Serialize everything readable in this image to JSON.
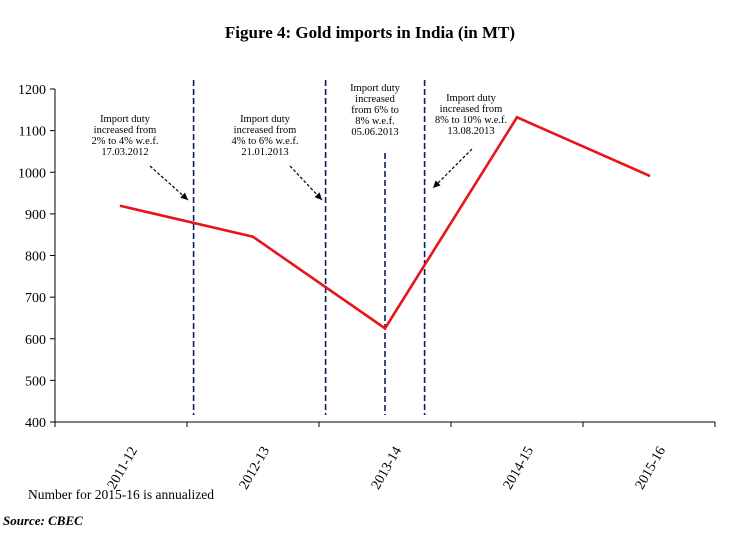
{
  "chart_data": {
    "type": "line",
    "title": "Figure 4: Gold imports in India (in MT)",
    "categories": [
      "2011-12",
      "2012-13",
      "2013-14",
      "2014-15",
      "2015-16"
    ],
    "series": [
      {
        "values": [
          919,
          845,
          625,
          1132,
          992
        ]
      }
    ],
    "ylim": [
      400,
      1200
    ],
    "y_ticks": [
      400,
      500,
      600,
      700,
      800,
      900,
      1000,
      1100,
      1200
    ],
    "grid": false,
    "series_color": "#e8141a",
    "marker_color": "#0b1f5c",
    "markers": [
      {
        "x": 0.55,
        "lines": [
          "Import duty",
          "increased from",
          "2% to 4% w.e.f.",
          "17.03.2012"
        ]
      },
      {
        "x": 1.55,
        "lines": [
          "Import duty",
          "increased from",
          "4% to 6% w.e.f.",
          "21.01.2013"
        ]
      },
      {
        "x": 2.0,
        "lines": [
          "Import duty",
          "increased",
          "from 6% to",
          "8% w.e.f.",
          "05.06.2013"
        ]
      },
      {
        "x": 2.3,
        "lines": [
          "Import duty",
          "increased from",
          "8% to 10% w.e.f.",
          "13.08.2013"
        ]
      }
    ]
  },
  "footnote": "Number for 2015-16 is annualized",
  "source": "Source: CBEC"
}
